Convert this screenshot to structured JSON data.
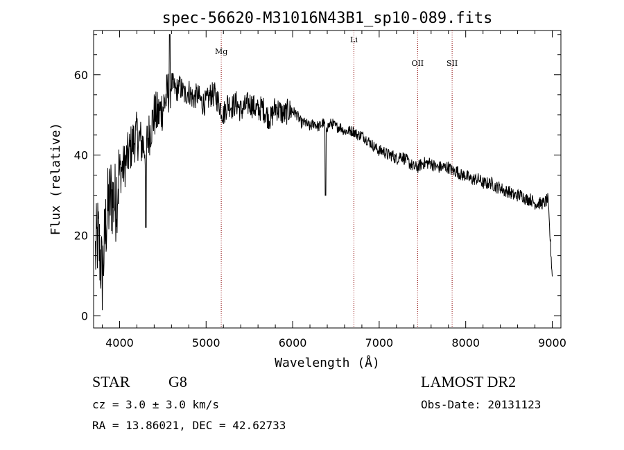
{
  "chart_data": {
    "type": "line",
    "title": "spec-56620-M31016N43B1_sp10-089.fits",
    "xlabel": "Wavelength (Å)",
    "ylabel": "Flux (relative)",
    "xlim": [
      3700,
      9100
    ],
    "ylim": [
      -3,
      71
    ],
    "xticks": [
      4000,
      5000,
      6000,
      7000,
      8000,
      9000
    ],
    "yticks": [
      0,
      20,
      40,
      60
    ],
    "grid": false,
    "series": [
      {
        "x": [
          3700,
          3750,
          3800,
          3850,
          3900,
          3950,
          4000,
          4050,
          4100,
          4150,
          4200,
          4250,
          4300,
          4350,
          4400,
          4450,
          4500,
          4550,
          4600,
          4650,
          4700,
          4750,
          4800,
          4850,
          4900,
          4950,
          5000,
          5050,
          5100,
          5150,
          5200,
          5250,
          5300,
          5350,
          5400,
          5450,
          5500,
          5550,
          5600,
          5650,
          5700,
          5750,
          5800,
          5850,
          5900,
          5950,
          6000,
          6050,
          6100,
          6150,
          6200,
          6250,
          6300,
          6350,
          6400,
          6450,
          6500,
          6550,
          6600,
          6650,
          6700,
          6750,
          6800,
          6850,
          6900,
          6950,
          7000,
          7050,
          7100,
          7150,
          7200,
          7250,
          7300,
          7350,
          7400,
          7450,
          7500,
          7550,
          7600,
          7650,
          7700,
          7750,
          7800,
          7850,
          7900,
          7950,
          8000,
          8050,
          8100,
          8150,
          8200,
          8250,
          8300,
          8350,
          8400,
          8450,
          8500,
          8550,
          8600,
          8650,
          8700,
          8750,
          8800,
          8850,
          8900,
          8950,
          9000
        ],
        "y": [
          12,
          20,
          10,
          25,
          30,
          28,
          36,
          37,
          40,
          43,
          45,
          43,
          42,
          46,
          50,
          50,
          52,
          55,
          58,
          56,
          57,
          55,
          56,
          54,
          55,
          53,
          53,
          55,
          55,
          53,
          50,
          53,
          52,
          53,
          51,
          52,
          53,
          52,
          51,
          52,
          50,
          49,
          52,
          51,
          50,
          51,
          51,
          50,
          48,
          48,
          47,
          48,
          47,
          48,
          47,
          48,
          47,
          47,
          46,
          46,
          46,
          45,
          45,
          44,
          43,
          42,
          41,
          41,
          40,
          40,
          39,
          40,
          39,
          38,
          37,
          37,
          38,
          38,
          38,
          37,
          37,
          37,
          37,
          36,
          36,
          35,
          35,
          34,
          34,
          34,
          33,
          33,
          33,
          32,
          32,
          31,
          31,
          30,
          30,
          30,
          29,
          29,
          28,
          28,
          28,
          29,
          10
        ]
      }
    ],
    "annotations": [
      {
        "label": "Mg",
        "x": 5175
      },
      {
        "label": "Li",
        "x": 6708
      },
      {
        "label": "OII",
        "x": 7444
      },
      {
        "label": "SII",
        "x": 7843
      }
    ]
  },
  "info": {
    "object_class": "STAR",
    "subclass": "G8",
    "survey": "LAMOST DR2",
    "redshift": "cz = 3.0 ± 3.0 km/s",
    "obs_date": "Obs-Date: 20131123",
    "coords": "RA =  13.86021, DEC =  42.62733"
  }
}
